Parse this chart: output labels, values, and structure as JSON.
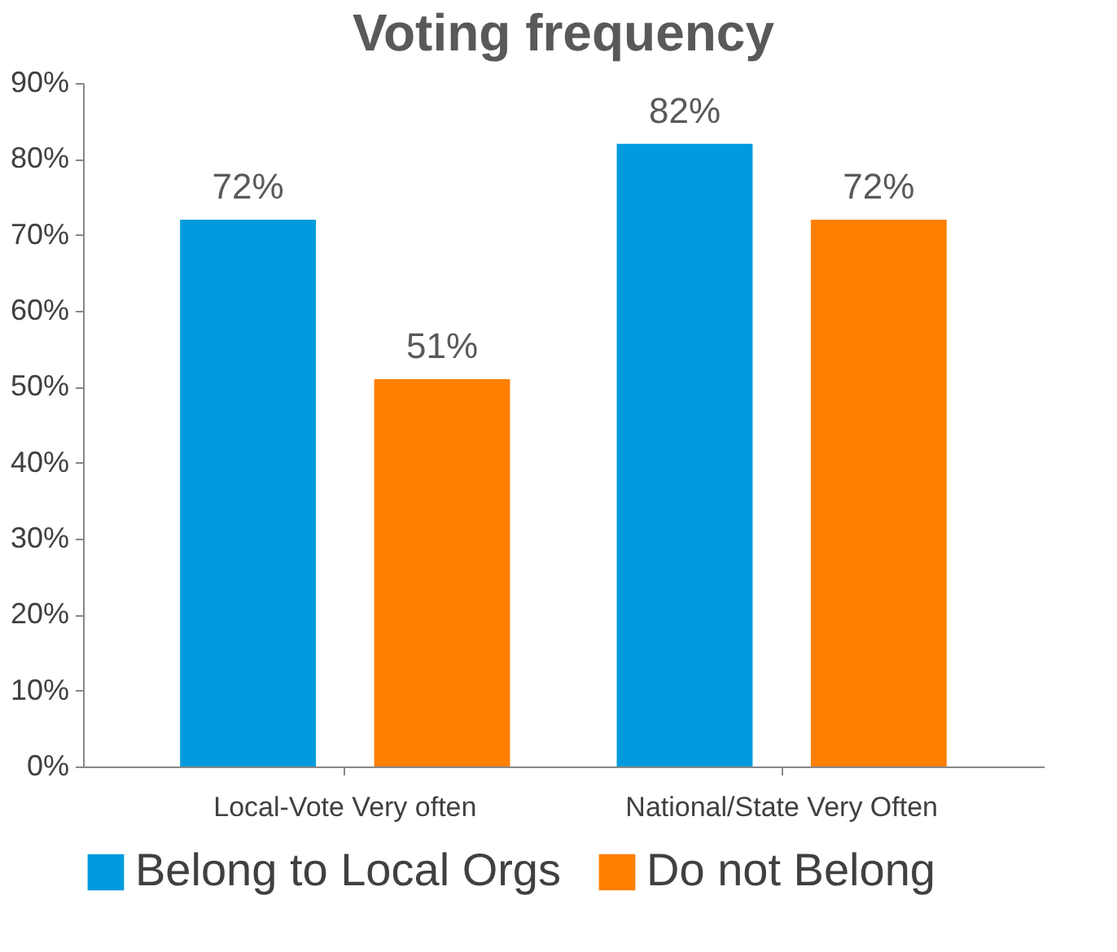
{
  "chart_data": {
    "type": "bar",
    "title": "Voting frequency",
    "categories": [
      "Local-Vote Very often",
      "National/State Very Often"
    ],
    "series": [
      {
        "name": "Belong to Local Orgs",
        "color": "#009bde",
        "values": [
          72,
          82
        ],
        "value_labels": [
          "72%",
          "82%"
        ]
      },
      {
        "name": "Do not Belong",
        "color": "#ff8000",
        "values": [
          51,
          72
        ],
        "value_labels": [
          "51%",
          "72%"
        ]
      }
    ],
    "ylim": [
      0,
      90
    ],
    "yticks": [
      {
        "value": 0,
        "label": "0%"
      },
      {
        "value": 10,
        "label": "10%"
      },
      {
        "value": 20,
        "label": "20%"
      },
      {
        "value": 30,
        "label": "30%"
      },
      {
        "value": 40,
        "label": "40%"
      },
      {
        "value": 50,
        "label": "50%"
      },
      {
        "value": 60,
        "label": "60%"
      },
      {
        "value": 70,
        "label": "70%"
      },
      {
        "value": 80,
        "label": "80%"
      },
      {
        "value": 90,
        "label": "90%"
      }
    ],
    "grid": false,
    "legend": "bottom"
  }
}
